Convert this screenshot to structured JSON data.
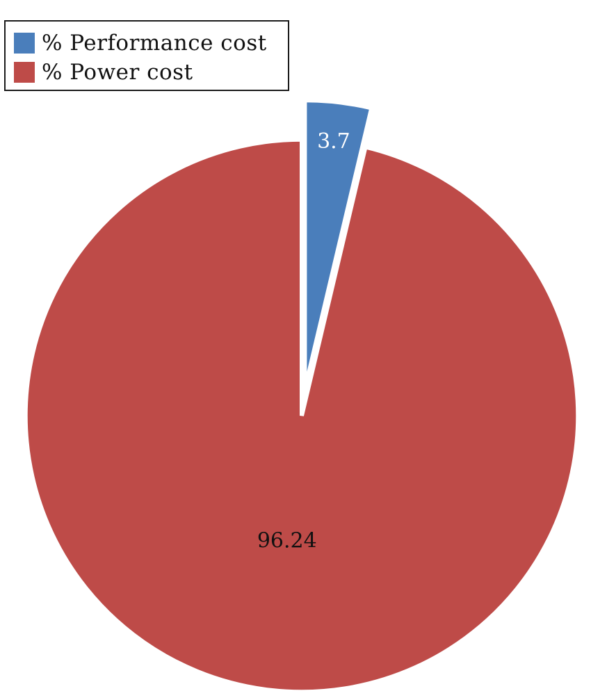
{
  "chart_data": {
    "type": "pie",
    "slices": [
      {
        "label": "% Performance cost",
        "value": 3.7,
        "value_label": "3.7",
        "color": "#4a7ebb",
        "exploded": true,
        "value_label_color": "#ffffff"
      },
      {
        "label": "% Power cost",
        "value": 96.24,
        "value_label": "96.24",
        "color": "#be4b48",
        "exploded": false,
        "value_label_color": "#111111"
      }
    ],
    "legend_position": "top-left"
  }
}
